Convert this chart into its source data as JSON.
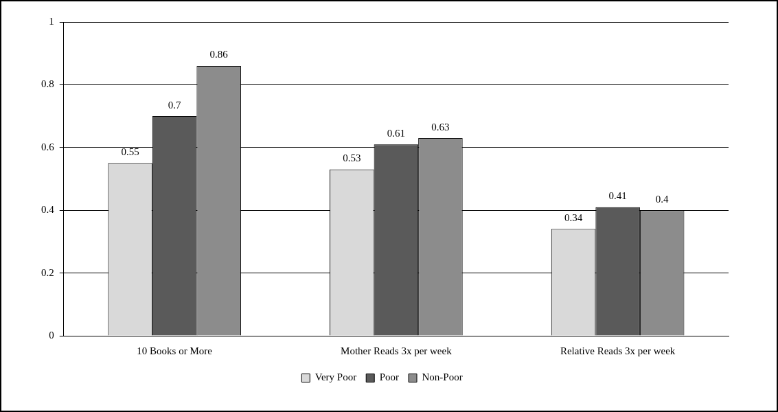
{
  "chart_data": {
    "type": "bar",
    "categories": [
      "10 Books or More",
      "Mother Reads 3x per week",
      "Relative Reads 3x per week"
    ],
    "series": [
      {
        "name": "Very Poor",
        "color": "#d9d9d9",
        "values": [
          0.55,
          0.53,
          0.34
        ]
      },
      {
        "name": "Poor",
        "color": "#5a5a5a",
        "values": [
          0.7,
          0.61,
          0.41
        ]
      },
      {
        "name": "Non-Poor",
        "color": "#8c8c8c",
        "values": [
          0.86,
          0.63,
          0.4
        ]
      }
    ],
    "ylim": [
      0,
      1
    ],
    "yticks": [
      0,
      0.2,
      0.4,
      0.6,
      0.8,
      1
    ],
    "grid": "y",
    "legend": "bottom",
    "data_labels": true
  }
}
